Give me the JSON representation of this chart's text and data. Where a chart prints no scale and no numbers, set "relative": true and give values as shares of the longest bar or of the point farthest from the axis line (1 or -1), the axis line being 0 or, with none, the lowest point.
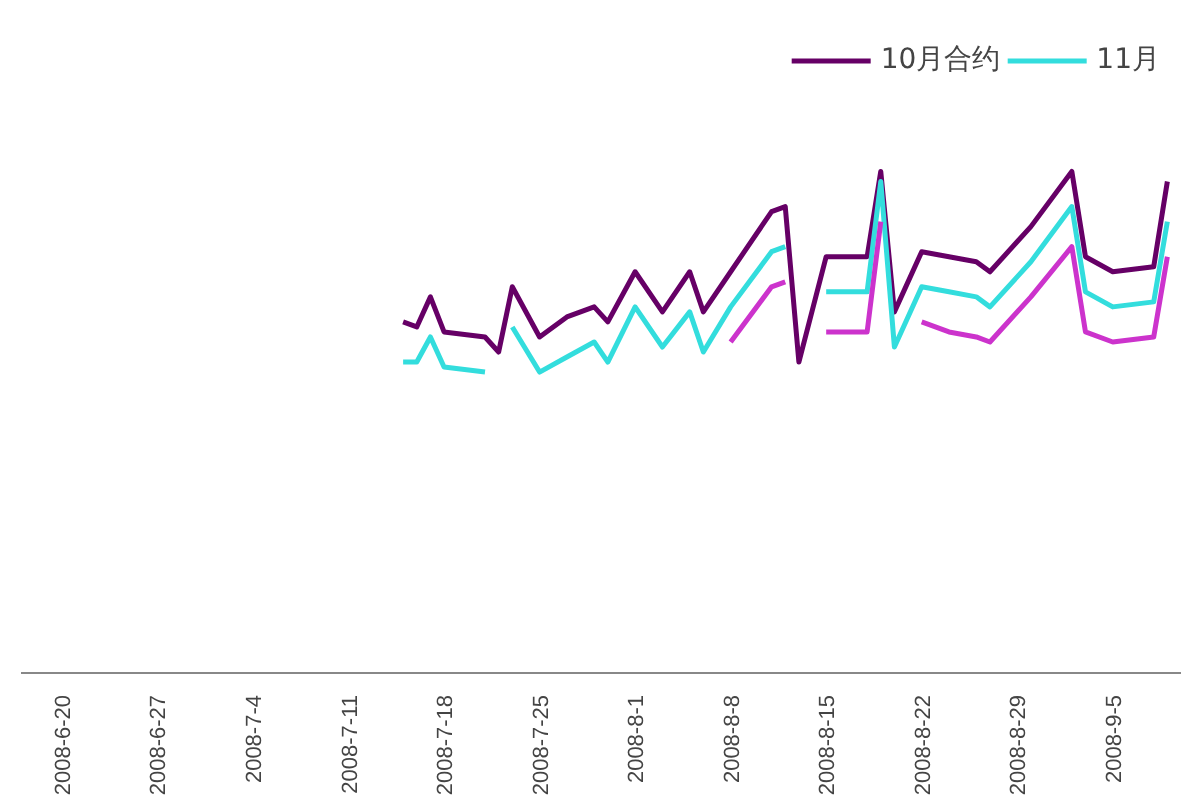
{
  "chart_data": {
    "type": "line",
    "relative": true,
    "x": [
      "2008-07-15",
      "2008-07-16",
      "2008-07-17",
      "2008-07-18",
      "2008-07-21",
      "2008-07-22",
      "2008-07-23",
      "2008-07-25",
      "2008-07-27",
      "2008-07-29",
      "2008-07-30",
      "2008-08-01",
      "2008-08-03",
      "2008-08-05",
      "2008-08-06",
      "2008-08-08",
      "2008-08-11",
      "2008-08-12",
      "2008-08-13",
      "2008-08-15",
      "2008-08-18",
      "2008-08-19",
      "2008-08-20",
      "2008-08-22",
      "2008-08-24",
      "2008-08-26",
      "2008-08-27",
      "2008-08-30",
      "2008-09-02",
      "2008-09-03",
      "2008-09-05",
      "2008-09-08",
      "2008-09-09"
    ],
    "xlim": [
      "2008-06-17",
      "2008-09-10"
    ],
    "xticks": [
      {
        "value": "2008-06-20",
        "label": "2008-6-20"
      },
      {
        "value": "2008-06-27",
        "label": "2008-6-27"
      },
      {
        "value": "2008-07-04",
        "label": "2008-7-4"
      },
      {
        "value": "2008-07-11",
        "label": "2008-7-11"
      },
      {
        "value": "2008-07-18",
        "label": "2008-7-18"
      },
      {
        "value": "2008-07-25",
        "label": "2008-7-25"
      },
      {
        "value": "2008-08-01",
        "label": "2008-8-1"
      },
      {
        "value": "2008-08-08",
        "label": "2008-8-8"
      },
      {
        "value": "2008-08-15",
        "label": "2008-8-15"
      },
      {
        "value": "2008-08-22",
        "label": "2008-8-22"
      },
      {
        "value": "2008-08-29",
        "label": "2008-8-29"
      },
      {
        "value": "2008-09-05",
        "label": "2008-9-5"
      }
    ],
    "series": [
      {
        "name": "10月合约",
        "color": "#660066",
        "values": [
          0.7,
          0.69,
          0.75,
          0.68,
          0.67,
          0.64,
          0.77,
          0.67,
          0.71,
          0.73,
          0.7,
          0.8,
          0.72,
          0.8,
          0.72,
          0.8,
          0.92,
          0.93,
          0.62,
          0.83,
          0.83,
          1.0,
          0.72,
          0.84,
          0.83,
          0.82,
          0.8,
          0.89,
          1.0,
          0.83,
          0.8,
          0.81,
          0.98
        ]
      },
      {
        "name": "11月",
        "color": "#33dddd",
        "values": [
          0.62,
          0.62,
          0.67,
          0.61,
          0.6,
          null,
          0.69,
          0.6,
          0.63,
          0.66,
          0.62,
          0.73,
          0.65,
          0.72,
          0.64,
          0.73,
          0.84,
          0.85,
          null,
          0.76,
          0.76,
          0.98,
          0.65,
          0.77,
          0.76,
          0.75,
          0.73,
          0.82,
          0.93,
          0.76,
          0.73,
          0.74,
          0.9
        ]
      },
      {
        "color": "#cc33cc",
        "values": [
          null,
          null,
          null,
          null,
          null,
          null,
          null,
          null,
          null,
          null,
          null,
          null,
          null,
          null,
          null,
          0.66,
          0.77,
          0.78,
          null,
          0.68,
          0.68,
          0.9,
          null,
          0.7,
          0.68,
          0.67,
          0.66,
          0.75,
          0.85,
          0.68,
          0.66,
          0.67,
          0.83
        ]
      }
    ],
    "legend": "top right"
  }
}
